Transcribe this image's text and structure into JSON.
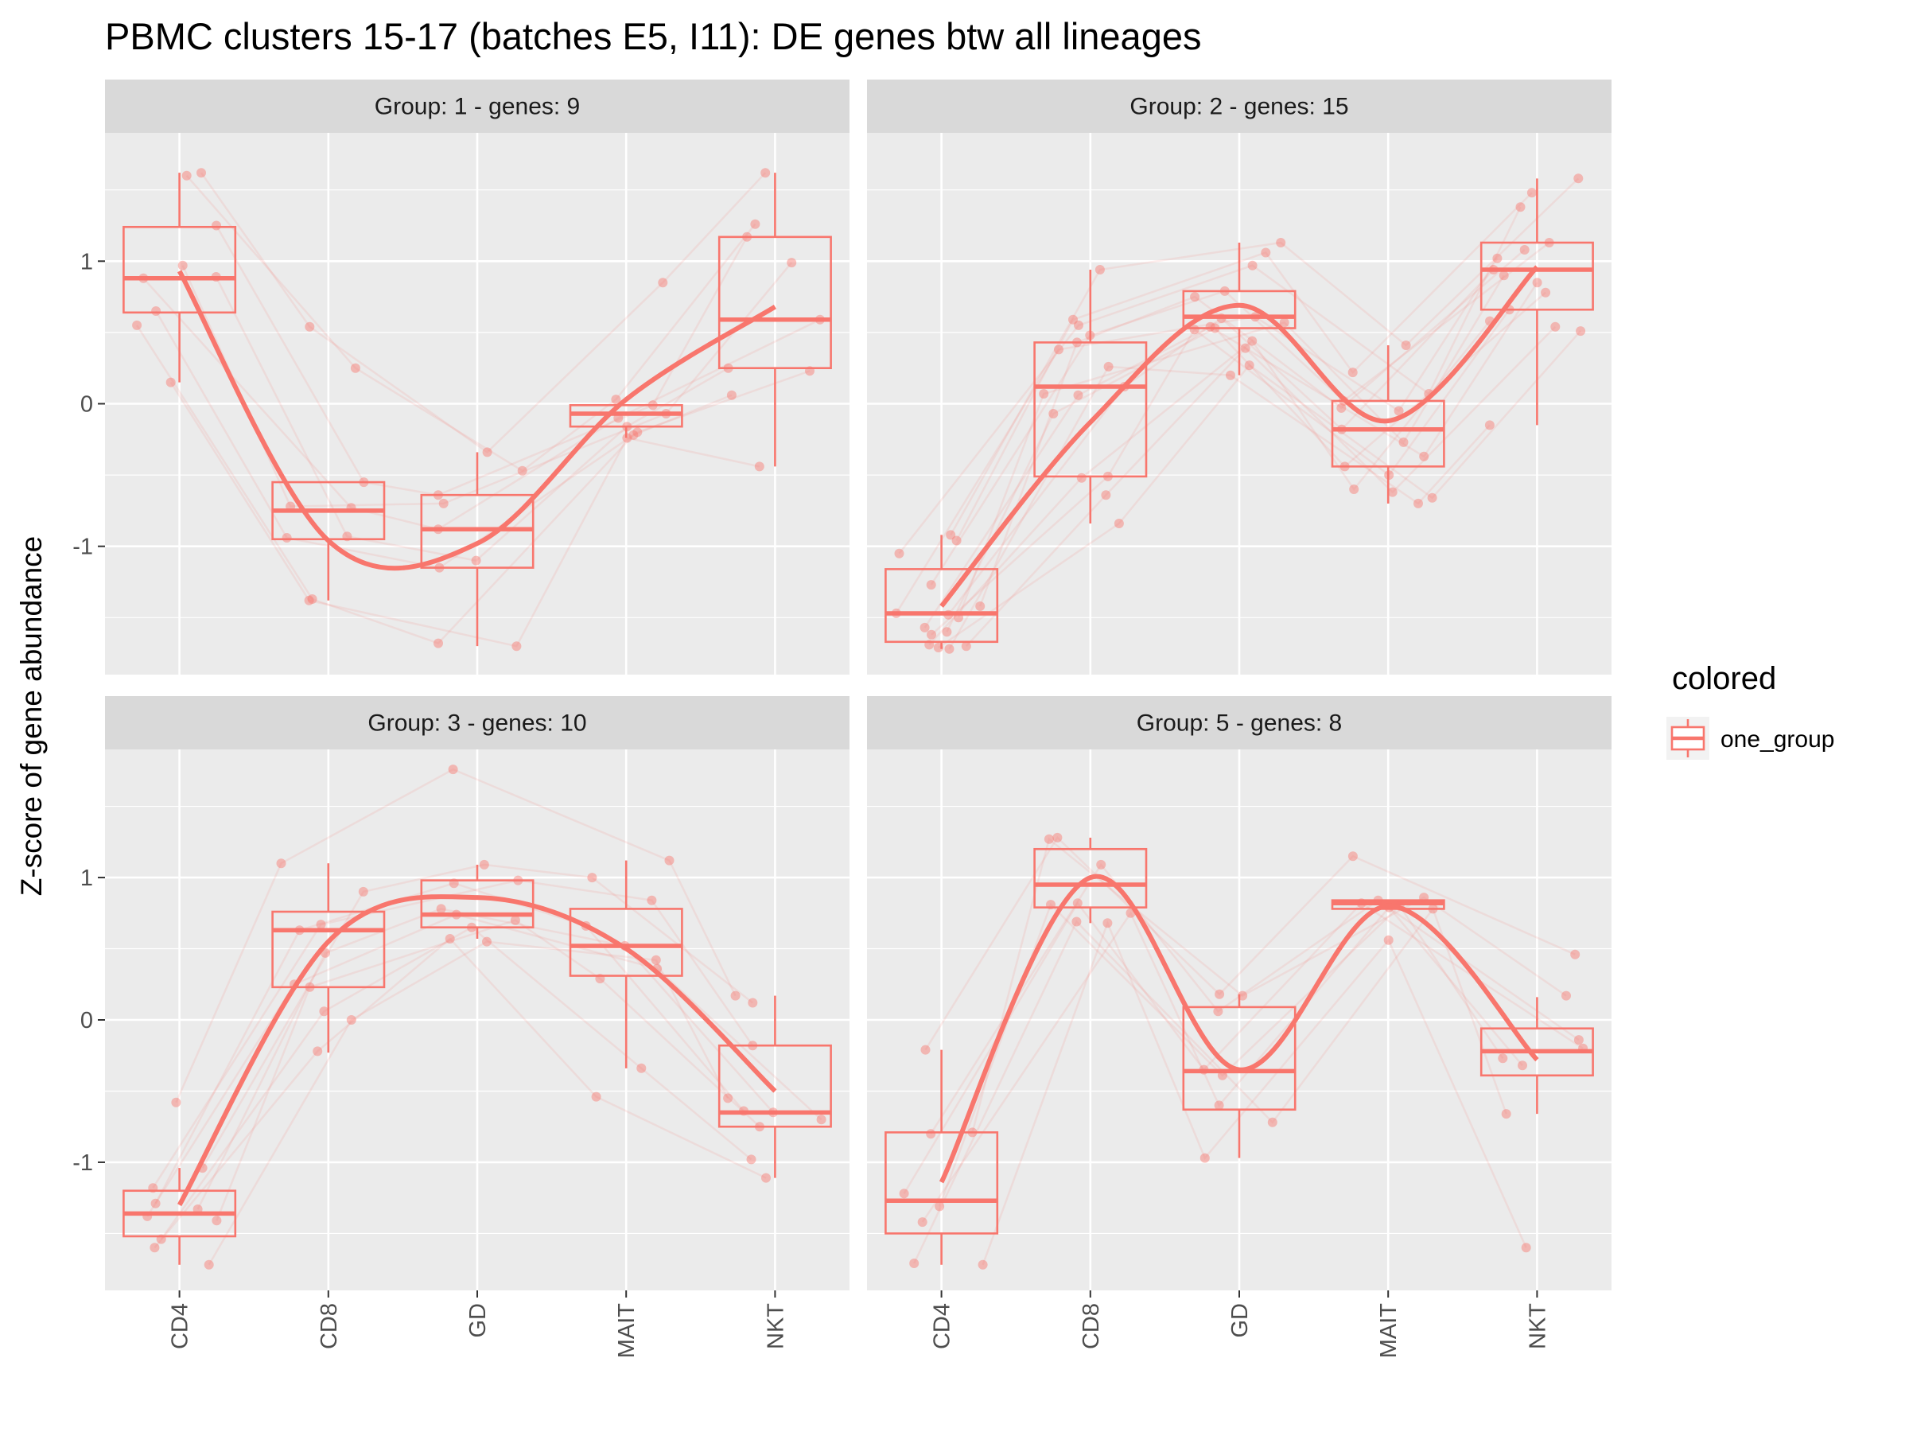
{
  "chart_data": {
    "type": "box+scatter+line",
    "title": "PBMC clusters 15-17 (batches E5, I11): DE genes btw all lineages",
    "ylabel": "Z-score of gene abundance",
    "xlabel": "",
    "categories": [
      "CD4",
      "CD8",
      "GD",
      "MAIT",
      "NKT"
    ],
    "y_ticks": [
      -1,
      0,
      1
    ],
    "ylim": [
      -1.9,
      1.9
    ],
    "grid": true,
    "legend": {
      "title": "colored",
      "entries": [
        "one_group"
      ],
      "position": "right"
    },
    "colors": {
      "group": "#F8766D",
      "panel_bg": "#EBEBEB",
      "strip_bg": "#D9D9D9",
      "grid": "#FFFFFF"
    },
    "facets": [
      {
        "label": "Group:  1 - genes: 9",
        "boxes": [
          {
            "category": "CD4",
            "lower_whisker": 0.15,
            "q1": 0.64,
            "median": 0.88,
            "q3": 1.24,
            "upper_whisker": 1.62
          },
          {
            "category": "CD8",
            "lower_whisker": -1.38,
            "q1": -0.95,
            "median": -0.75,
            "q3": -0.55,
            "upper_whisker": -0.55
          },
          {
            "category": "GD",
            "lower_whisker": -1.7,
            "q1": -1.15,
            "median": -0.88,
            "q3": -0.64,
            "upper_whisker": -0.34
          },
          {
            "category": "MAIT",
            "lower_whisker": -0.24,
            "q1": -0.16,
            "median": -0.07,
            "q3": -0.01,
            "upper_whisker": -0.01
          },
          {
            "category": "NKT",
            "lower_whisker": -0.44,
            "q1": 0.25,
            "median": 0.59,
            "q3": 1.17,
            "upper_whisker": 1.62
          }
        ],
        "points": [
          {
            "category": "CD4",
            "y": [
              1.62,
              1.6,
              1.25,
              0.97,
              0.88,
              0.89,
              0.65,
              0.55,
              0.15
            ]
          },
          {
            "category": "CD8",
            "y": [
              0.54,
              0.25,
              -0.55,
              -0.72,
              -0.73,
              -0.93,
              -0.94,
              -1.37,
              -1.38
            ]
          },
          {
            "category": "GD",
            "y": [
              -0.34,
              -0.47,
              -0.64,
              -0.7,
              -0.88,
              -1.1,
              -1.15,
              -1.68,
              -1.7
            ]
          },
          {
            "category": "MAIT",
            "y": [
              0.85,
              0.03,
              -0.01,
              -0.07,
              -0.1,
              -0.16,
              -0.2,
              -0.22,
              -0.24
            ]
          },
          {
            "category": "NKT",
            "y": [
              1.62,
              1.26,
              1.17,
              0.99,
              0.59,
              0.25,
              0.23,
              0.06,
              -0.44
            ]
          }
        ],
        "trend": [
          0.93,
          -0.96,
          -0.98,
          0.03,
          0.68
        ]
      },
      {
        "label": "Group:  2 - genes: 15",
        "boxes": [
          {
            "category": "CD4",
            "lower_whisker": -1.72,
            "q1": -1.67,
            "median": -1.47,
            "q3": -1.16,
            "upper_whisker": -0.92
          },
          {
            "category": "CD8",
            "lower_whisker": -0.84,
            "q1": -0.51,
            "median": 0.12,
            "q3": 0.43,
            "upper_whisker": 0.94
          },
          {
            "category": "GD",
            "lower_whisker": 0.2,
            "q1": 0.53,
            "median": 0.61,
            "q3": 0.79,
            "upper_whisker": 1.13
          },
          {
            "category": "MAIT",
            "lower_whisker": -0.7,
            "q1": -0.44,
            "median": -0.18,
            "q3": 0.02,
            "upper_whisker": 0.41
          },
          {
            "category": "NKT",
            "lower_whisker": -0.15,
            "q1": 0.66,
            "median": 0.94,
            "q3": 1.13,
            "upper_whisker": 1.58
          }
        ],
        "points": [
          {
            "category": "CD4",
            "y": [
              -0.92,
              -0.96,
              -1.05,
              -1.27,
              -1.42,
              -1.47,
              -1.48,
              -1.5,
              -1.57,
              -1.6,
              -1.62,
              -1.69,
              -1.7,
              -1.71,
              -1.72
            ]
          },
          {
            "category": "CD8",
            "y": [
              0.94,
              0.59,
              0.55,
              0.48,
              0.43,
              0.38,
              0.12,
              0.07,
              0.06,
              -0.07,
              -0.51,
              -0.52,
              -0.64,
              -0.84,
              0.26
            ]
          },
          {
            "category": "GD",
            "y": [
              1.13,
              1.06,
              0.97,
              0.79,
              0.75,
              0.61,
              0.6,
              0.57,
              0.54,
              0.53,
              0.52,
              0.44,
              0.39,
              0.27,
              0.2
            ]
          },
          {
            "category": "MAIT",
            "y": [
              0.41,
              0.22,
              0.07,
              0.02,
              -0.03,
              -0.05,
              -0.18,
              -0.27,
              -0.37,
              -0.44,
              -0.5,
              -0.6,
              -0.62,
              -0.66,
              -0.7
            ]
          },
          {
            "category": "NKT",
            "y": [
              1.58,
              1.48,
              1.38,
              1.13,
              1.08,
              1.02,
              0.94,
              0.9,
              0.85,
              0.78,
              0.66,
              0.58,
              0.54,
              0.51,
              -0.15
            ]
          }
        ],
        "trend": [
          -1.42,
          -0.13,
          0.69,
          -0.12,
          0.96
        ]
      },
      {
        "label": "Group:  3 - genes: 10",
        "boxes": [
          {
            "category": "CD4",
            "lower_whisker": -1.72,
            "q1": -1.52,
            "median": -1.36,
            "q3": -1.2,
            "upper_whisker": -1.04
          },
          {
            "category": "CD8",
            "lower_whisker": -0.23,
            "q1": 0.23,
            "median": 0.63,
            "q3": 0.76,
            "upper_whisker": 1.1
          },
          {
            "category": "GD",
            "lower_whisker": 0.57,
            "q1": 0.65,
            "median": 0.74,
            "q3": 0.98,
            "upper_whisker": 1.09
          },
          {
            "category": "MAIT",
            "lower_whisker": -0.34,
            "q1": 0.31,
            "median": 0.52,
            "q3": 0.78,
            "upper_whisker": 1.12
          },
          {
            "category": "NKT",
            "lower_whisker": -1.11,
            "q1": -0.75,
            "median": -0.65,
            "q3": -0.18,
            "upper_whisker": 0.17
          }
        ],
        "points": [
          {
            "category": "CD4",
            "y": [
              -0.58,
              -1.04,
              -1.18,
              -1.29,
              -1.33,
              -1.38,
              -1.41,
              -1.54,
              -1.6,
              -1.72
            ]
          },
          {
            "category": "CD8",
            "y": [
              1.1,
              0.9,
              0.67,
              0.63,
              0.47,
              0.25,
              0.23,
              0.06,
              -0.22,
              0.0
            ]
          },
          {
            "category": "GD",
            "y": [
              1.76,
              1.09,
              0.98,
              0.96,
              0.78,
              0.74,
              0.7,
              0.65,
              0.57,
              0.55
            ]
          },
          {
            "category": "MAIT",
            "y": [
              1.12,
              1.0,
              0.84,
              0.66,
              0.52,
              0.36,
              0.29,
              -0.34,
              -0.54,
              0.42
            ]
          },
          {
            "category": "NKT",
            "y": [
              0.17,
              0.12,
              -0.18,
              -0.64,
              -0.65,
              -0.7,
              -0.75,
              -0.98,
              -1.11,
              -0.55
            ]
          }
        ],
        "trend": [
          -1.3,
          0.55,
          0.86,
          0.5,
          -0.5
        ]
      },
      {
        "label": "Group:  5 - genes: 8",
        "boxes": [
          {
            "category": "CD4",
            "lower_whisker": -1.72,
            "q1": -1.5,
            "median": -1.27,
            "q3": -0.79,
            "upper_whisker": -0.21
          },
          {
            "category": "CD8",
            "lower_whisker": 0.68,
            "q1": 0.79,
            "median": 0.95,
            "q3": 1.2,
            "upper_whisker": 1.28
          },
          {
            "category": "GD",
            "lower_whisker": -0.97,
            "q1": -0.63,
            "median": -0.36,
            "q3": 0.09,
            "upper_whisker": 0.18
          },
          {
            "category": "MAIT",
            "lower_whisker": 0.78,
            "q1": 0.78,
            "median": 0.82,
            "q3": 0.84,
            "upper_whisker": 0.84
          },
          {
            "category": "NKT",
            "lower_whisker": -0.66,
            "q1": -0.39,
            "median": -0.22,
            "q3": -0.06,
            "upper_whisker": 0.16
          }
        ],
        "points": [
          {
            "category": "CD4",
            "y": [
              -0.21,
              -0.79,
              -0.8,
              -1.22,
              -1.31,
              -1.42,
              -1.71,
              -1.72
            ]
          },
          {
            "category": "CD8",
            "y": [
              1.28,
              1.27,
              1.09,
              0.82,
              0.81,
              0.75,
              0.69,
              0.68
            ]
          },
          {
            "category": "GD",
            "y": [
              0.18,
              0.17,
              0.06,
              -0.35,
              -0.39,
              -0.6,
              -0.72,
              -0.97
            ]
          },
          {
            "category": "MAIT",
            "y": [
              1.15,
              0.86,
              0.84,
              0.82,
              0.8,
              0.79,
              0.78,
              0.56
            ]
          },
          {
            "category": "NKT",
            "y": [
              0.46,
              0.17,
              -0.14,
              -0.2,
              -0.27,
              -0.32,
              -0.66,
              -1.6
            ]
          }
        ],
        "trend": [
          -1.14,
          1.0,
          -0.35,
          0.8,
          -0.28
        ]
      }
    ]
  }
}
